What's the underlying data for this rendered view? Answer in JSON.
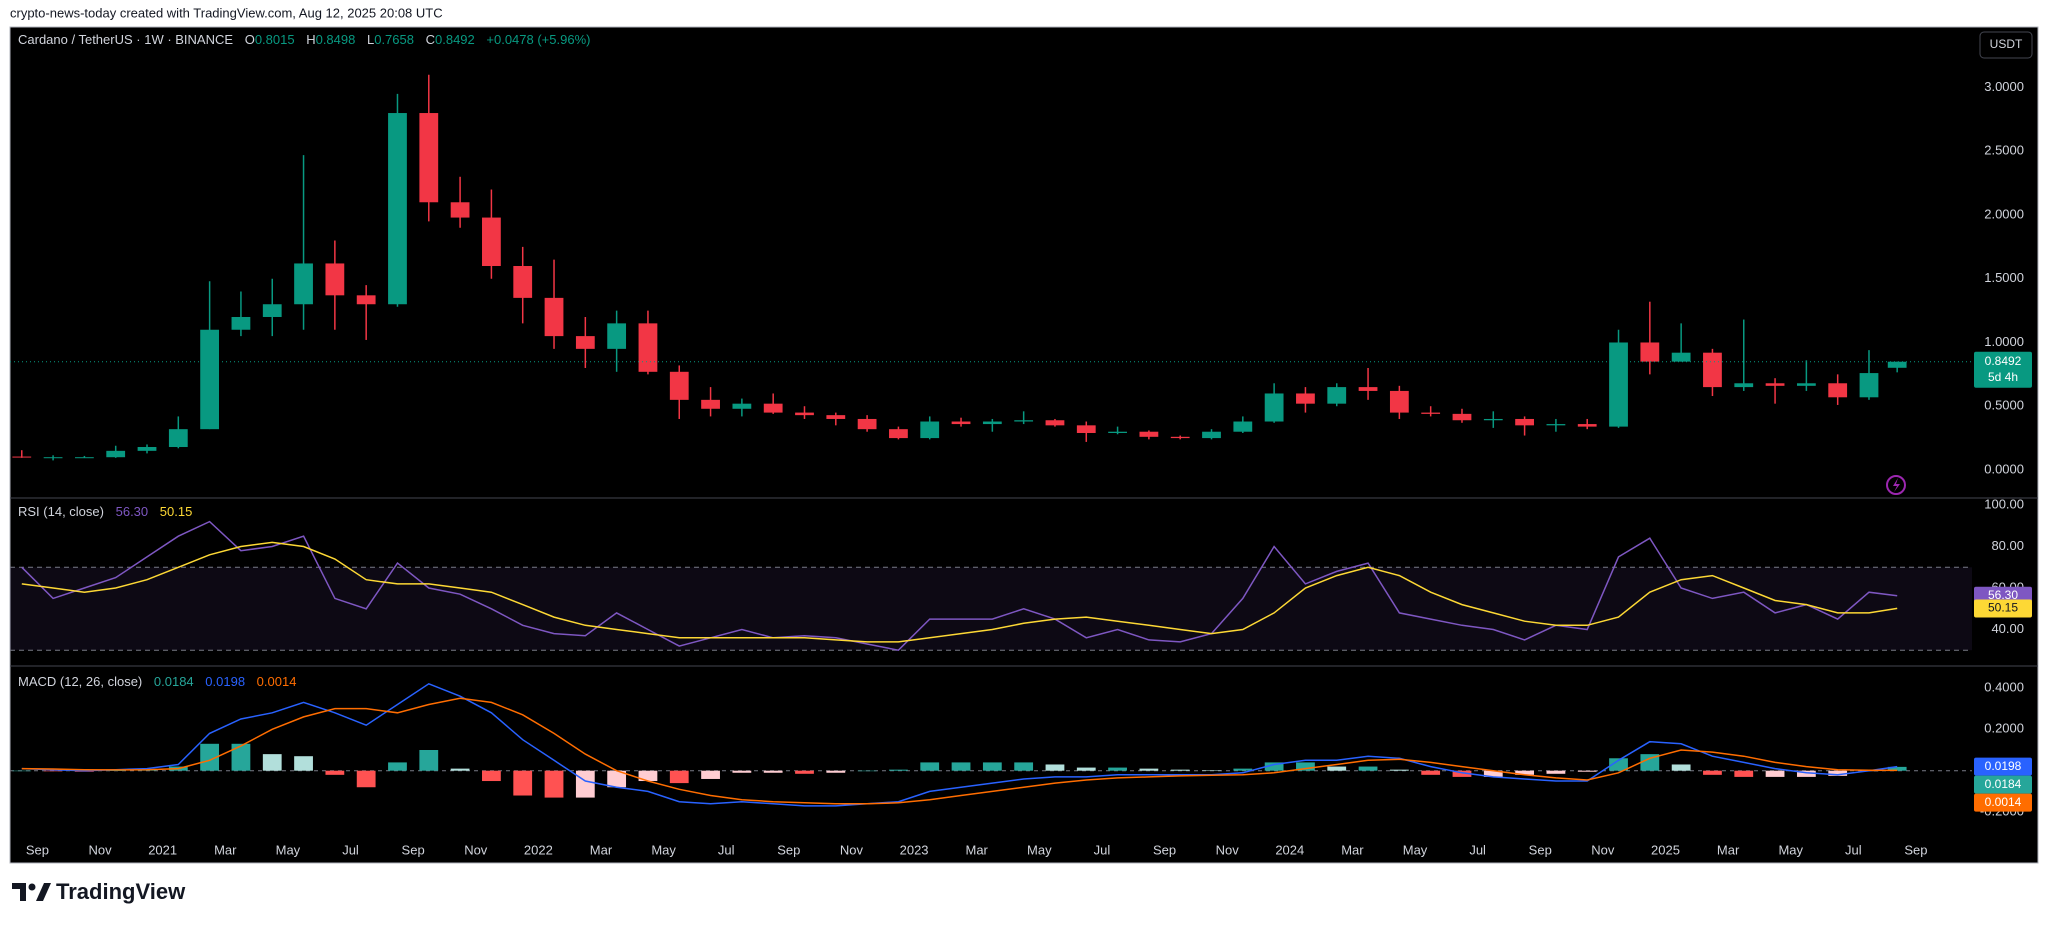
{
  "header": {
    "watermark": "crypto-news-today created with TradingView.com, Aug 12, 2025 20:08 UTC",
    "brand": "TradingView",
    "currency": "USDT"
  },
  "chart_data": [
    {
      "type": "candlestick",
      "title": "Cardano / TetherUS · 1W · BINANCE",
      "legend_keys": [
        "O",
        "H",
        "L",
        "C"
      ],
      "change": "+0.0478 (+5.96%)",
      "countdown": "5d 4h",
      "up_color": "#089981",
      "down_color": "#f23645",
      "x": [
        -0.5,
        0.5,
        1.5,
        2.5,
        3.5,
        4.5,
        5.5,
        6.5,
        7.5,
        8.5,
        9.5,
        10.5,
        11.5,
        12.5,
        13.5,
        14.5,
        15.5,
        16.5,
        17.5,
        18.5,
        19.5,
        20.5,
        21.5,
        22.5,
        23.5,
        24.5,
        25.5,
        26.5,
        27.5,
        28.5,
        29.5,
        30.5,
        31.5,
        32.5,
        33.5,
        34.5,
        35.5,
        36.5,
        37.5,
        38.5,
        39.5,
        40.5,
        41.5,
        42.5,
        43.5,
        44.5,
        45.5,
        46.5,
        47.5,
        48.5,
        49.5,
        50.5,
        51.5,
        52.5,
        53.5,
        54.5,
        55.5,
        56.5,
        57.5,
        58.5,
        59.4
      ],
      "open": [
        0.105,
        0.1,
        0.1,
        0.1,
        0.15,
        0.18,
        0.32,
        1.1,
        1.2,
        1.3,
        1.62,
        1.37,
        1.3,
        2.8,
        2.1,
        1.98,
        1.6,
        1.35,
        1.05,
        0.95,
        1.15,
        0.77,
        0.55,
        0.48,
        0.52,
        0.45,
        0.43,
        0.4,
        0.32,
        0.25,
        0.38,
        0.36,
        0.38,
        0.39,
        0.35,
        0.29,
        0.3,
        0.26,
        0.25,
        0.3,
        0.38,
        0.6,
        0.52,
        0.65,
        0.62,
        0.45,
        0.44,
        0.39,
        0.4,
        0.35,
        0.36,
        0.34,
        1.0,
        0.85,
        0.92,
        0.65,
        0.68,
        0.66,
        0.68,
        0.57,
        0.8015
      ],
      "high": [
        0.155,
        0.115,
        0.11,
        0.19,
        0.2,
        0.42,
        1.48,
        1.4,
        1.5,
        2.47,
        1.8,
        1.45,
        2.95,
        3.1,
        2.3,
        2.2,
        1.75,
        1.65,
        1.2,
        1.25,
        1.25,
        0.82,
        0.65,
        0.56,
        0.6,
        0.5,
        0.45,
        0.43,
        0.34,
        0.42,
        0.41,
        0.4,
        0.46,
        0.4,
        0.38,
        0.34,
        0.31,
        0.27,
        0.32,
        0.42,
        0.68,
        0.65,
        0.68,
        0.8,
        0.66,
        0.5,
        0.48,
        0.46,
        0.42,
        0.4,
        0.4,
        1.1,
        1.32,
        1.15,
        0.95,
        1.18,
        0.72,
        0.86,
        0.75,
        0.94,
        0.8498
      ],
      "low": [
        0.095,
        0.075,
        0.095,
        0.095,
        0.13,
        0.17,
        0.32,
        1.05,
        1.05,
        1.1,
        1.1,
        1.02,
        1.28,
        1.95,
        1.9,
        1.5,
        1.15,
        0.95,
        0.8,
        0.77,
        0.75,
        0.4,
        0.42,
        0.42,
        0.44,
        0.4,
        0.35,
        0.3,
        0.24,
        0.24,
        0.34,
        0.3,
        0.36,
        0.34,
        0.22,
        0.28,
        0.24,
        0.24,
        0.24,
        0.29,
        0.37,
        0.45,
        0.5,
        0.55,
        0.4,
        0.42,
        0.37,
        0.33,
        0.27,
        0.3,
        0.32,
        0.33,
        0.75,
        0.85,
        0.58,
        0.62,
        0.52,
        0.62,
        0.51,
        0.55,
        0.7658
      ],
      "close": [
        0.1,
        0.1,
        0.1,
        0.15,
        0.18,
        0.32,
        1.1,
        1.2,
        1.3,
        1.62,
        1.37,
        1.3,
        2.8,
        2.1,
        1.98,
        1.6,
        1.35,
        1.05,
        0.95,
        1.15,
        0.77,
        0.55,
        0.48,
        0.52,
        0.45,
        0.43,
        0.4,
        0.32,
        0.25,
        0.38,
        0.36,
        0.38,
        0.39,
        0.35,
        0.29,
        0.3,
        0.26,
        0.25,
        0.3,
        0.38,
        0.6,
        0.52,
        0.65,
        0.62,
        0.45,
        0.44,
        0.39,
        0.4,
        0.35,
        0.36,
        0.34,
        1.0,
        0.85,
        0.92,
        0.65,
        0.68,
        0.66,
        0.68,
        0.57,
        0.76,
        0.8492
      ],
      "xlim": [
        -0.876,
        61.79
      ],
      "xticks": [
        {
          "value": 0,
          "label": "Sep"
        },
        {
          "value": 2,
          "label": "Nov"
        },
        {
          "value": 4,
          "label": "2021"
        },
        {
          "value": 6,
          "label": "Mar"
        },
        {
          "value": 8,
          "label": "May"
        },
        {
          "value": 10,
          "label": "Jul"
        },
        {
          "value": 12,
          "label": "Sep"
        },
        {
          "value": 14,
          "label": "Nov"
        },
        {
          "value": 16,
          "label": "2022"
        },
        {
          "value": 18,
          "label": "Mar"
        },
        {
          "value": 20,
          "label": "May"
        },
        {
          "value": 22,
          "label": "Jul"
        },
        {
          "value": 24,
          "label": "Sep"
        },
        {
          "value": 26,
          "label": "Nov"
        },
        {
          "value": 28,
          "label": "2023"
        },
        {
          "value": 30,
          "label": "Mar"
        },
        {
          "value": 32,
          "label": "May"
        },
        {
          "value": 34,
          "label": "Jul"
        },
        {
          "value": 36,
          "label": "Sep"
        },
        {
          "value": 38,
          "label": "Nov"
        },
        {
          "value": 40,
          "label": "2024"
        },
        {
          "value": 42,
          "label": "Mar"
        },
        {
          "value": 44,
          "label": "May"
        },
        {
          "value": 46,
          "label": "Jul"
        },
        {
          "value": 48,
          "label": "Sep"
        },
        {
          "value": 50,
          "label": "Nov"
        },
        {
          "value": 52,
          "label": "2025"
        },
        {
          "value": 54,
          "label": "Mar"
        },
        {
          "value": 56,
          "label": "May"
        },
        {
          "value": 58,
          "label": "Jul"
        },
        {
          "value": 60,
          "label": "Sep"
        }
      ],
      "ylim": [
        -0.22,
        3.475
      ],
      "yticks": [
        {
          "value": 0,
          "label": "0.0000"
        },
        {
          "value": 0.5,
          "label": "0.5000"
        },
        {
          "value": 1,
          "label": "1.0000"
        },
        {
          "value": 1.5,
          "label": "1.5000"
        },
        {
          "value": 2,
          "label": "2.0000"
        },
        {
          "value": 2.5,
          "label": "2.5000"
        },
        {
          "value": 3,
          "label": "3.0000"
        }
      ]
    },
    {
      "type": "rsi",
      "title": "RSI (14, close)",
      "bands": [
        70,
        30
      ],
      "band_color": "#7e57c2",
      "series": [
        {
          "color": "#7e57c2",
          "last_label": "56.30",
          "values": [
            70,
            55,
            60,
            65,
            75,
            85,
            92,
            78,
            80,
            85,
            55,
            50,
            72,
            60,
            57,
            50,
            42,
            38,
            37,
            48,
            40,
            32,
            36,
            40,
            36,
            37,
            36,
            33,
            30,
            45,
            45,
            45,
            50,
            45,
            36,
            40,
            35,
            34,
            38,
            55,
            80,
            62,
            68,
            72,
            48,
            45,
            42,
            40,
            35,
            42,
            40,
            75,
            84,
            60,
            55,
            58,
            48,
            52,
            45,
            58,
            56.3
          ]
        },
        {
          "color": "#fdd835",
          "last_label": "50.15",
          "values": [
            62,
            60,
            58,
            60,
            64,
            70,
            76,
            80,
            82,
            80,
            74,
            64,
            62,
            62,
            60,
            58,
            52,
            46,
            42,
            40,
            38,
            36,
            36,
            36,
            36,
            36,
            35,
            34,
            34,
            36,
            38,
            40,
            43,
            45,
            46,
            44,
            42,
            40,
            38,
            40,
            48,
            60,
            66,
            70,
            66,
            58,
            52,
            48,
            44,
            42,
            42,
            46,
            58,
            64,
            66,
            60,
            54,
            52,
            48,
            48,
            50.15
          ]
        }
      ],
      "ylim": [
        22.4,
        103.4
      ],
      "yticks": [
        {
          "value": 40,
          "label": "40.00"
        },
        {
          "value": 60,
          "label": "60.00"
        },
        {
          "value": 80,
          "label": "80.00"
        },
        {
          "value": 100,
          "label": "100.00"
        }
      ]
    },
    {
      "type": "macd",
      "title": "MACD (12, 26, close)",
      "series": [
        {
          "kind": "histogram",
          "colors": [
            "#26a69a",
            "#b2dfdb",
            "#ffcdd2",
            "#ff5252"
          ],
          "color": "#26a69a",
          "last_label": "0.0184",
          "values": [
            0,
            -0.003,
            -0.005,
            0.001,
            0.005,
            0.02,
            0.13,
            0.13,
            0.08,
            0.07,
            -0.02,
            -0.08,
            0.04,
            0.1,
            0.01,
            -0.05,
            -0.12,
            -0.13,
            -0.13,
            -0.08,
            -0.05,
            -0.06,
            -0.04,
            -0.01,
            -0.01,
            -0.015,
            -0.01,
            0,
            0.005,
            0.04,
            0.04,
            0.04,
            0.04,
            0.03,
            0.015,
            0.015,
            0.01,
            0.005,
            0.002,
            0.01,
            0.04,
            0.04,
            0.02,
            0.02,
            0.005,
            -0.02,
            -0.03,
            -0.03,
            -0.02,
            -0.015,
            -0.005,
            0.06,
            0.08,
            0.03,
            -0.02,
            -0.03,
            -0.03,
            -0.03,
            -0.025,
            -0.002,
            0.0184
          ]
        },
        {
          "kind": "line",
          "color": "#2962ff",
          "last_label": "0.0198",
          "values": [
            0.01,
            0.005,
            0,
            0.005,
            0.01,
            0.03,
            0.18,
            0.25,
            0.28,
            0.33,
            0.28,
            0.22,
            0.32,
            0.42,
            0.36,
            0.28,
            0.15,
            0.05,
            -0.05,
            -0.08,
            -0.1,
            -0.15,
            -0.16,
            -0.15,
            -0.16,
            -0.17,
            -0.17,
            -0.16,
            -0.15,
            -0.1,
            -0.08,
            -0.06,
            -0.04,
            -0.03,
            -0.03,
            -0.02,
            -0.02,
            -0.02,
            -0.02,
            -0.01,
            0.03,
            0.05,
            0.05,
            0.07,
            0.06,
            0.02,
            -0.01,
            -0.03,
            -0.04,
            -0.05,
            -0.05,
            0.05,
            0.14,
            0.13,
            0.07,
            0.04,
            0.01,
            -0.01,
            -0.02,
            0,
            0.0198
          ]
        },
        {
          "kind": "line",
          "color": "#ff6d00",
          "last_label": "0.0014",
          "values": [
            0.01,
            0.008,
            0.005,
            0.004,
            0.005,
            0.01,
            0.05,
            0.12,
            0.2,
            0.26,
            0.3,
            0.3,
            0.28,
            0.32,
            0.35,
            0.33,
            0.27,
            0.18,
            0.08,
            0,
            -0.05,
            -0.09,
            -0.12,
            -0.14,
            -0.15,
            -0.155,
            -0.16,
            -0.16,
            -0.155,
            -0.14,
            -0.12,
            -0.1,
            -0.08,
            -0.06,
            -0.045,
            -0.035,
            -0.03,
            -0.025,
            -0.022,
            -0.02,
            -0.01,
            0.01,
            0.03,
            0.05,
            0.055,
            0.04,
            0.02,
            0,
            -0.02,
            -0.035,
            -0.045,
            -0.01,
            0.06,
            0.1,
            0.09,
            0.07,
            0.04,
            0.02,
            0.005,
            0.002,
            0.0014
          ]
        }
      ],
      "ylim": [
        -0.335,
        0.506
      ],
      "yticks": [
        {
          "value": 0.4,
          "label": "0.4000"
        },
        {
          "value": 0.2,
          "label": "0.2000"
        },
        {
          "value": -0.2,
          "label": "-0.2000"
        }
      ]
    }
  ]
}
